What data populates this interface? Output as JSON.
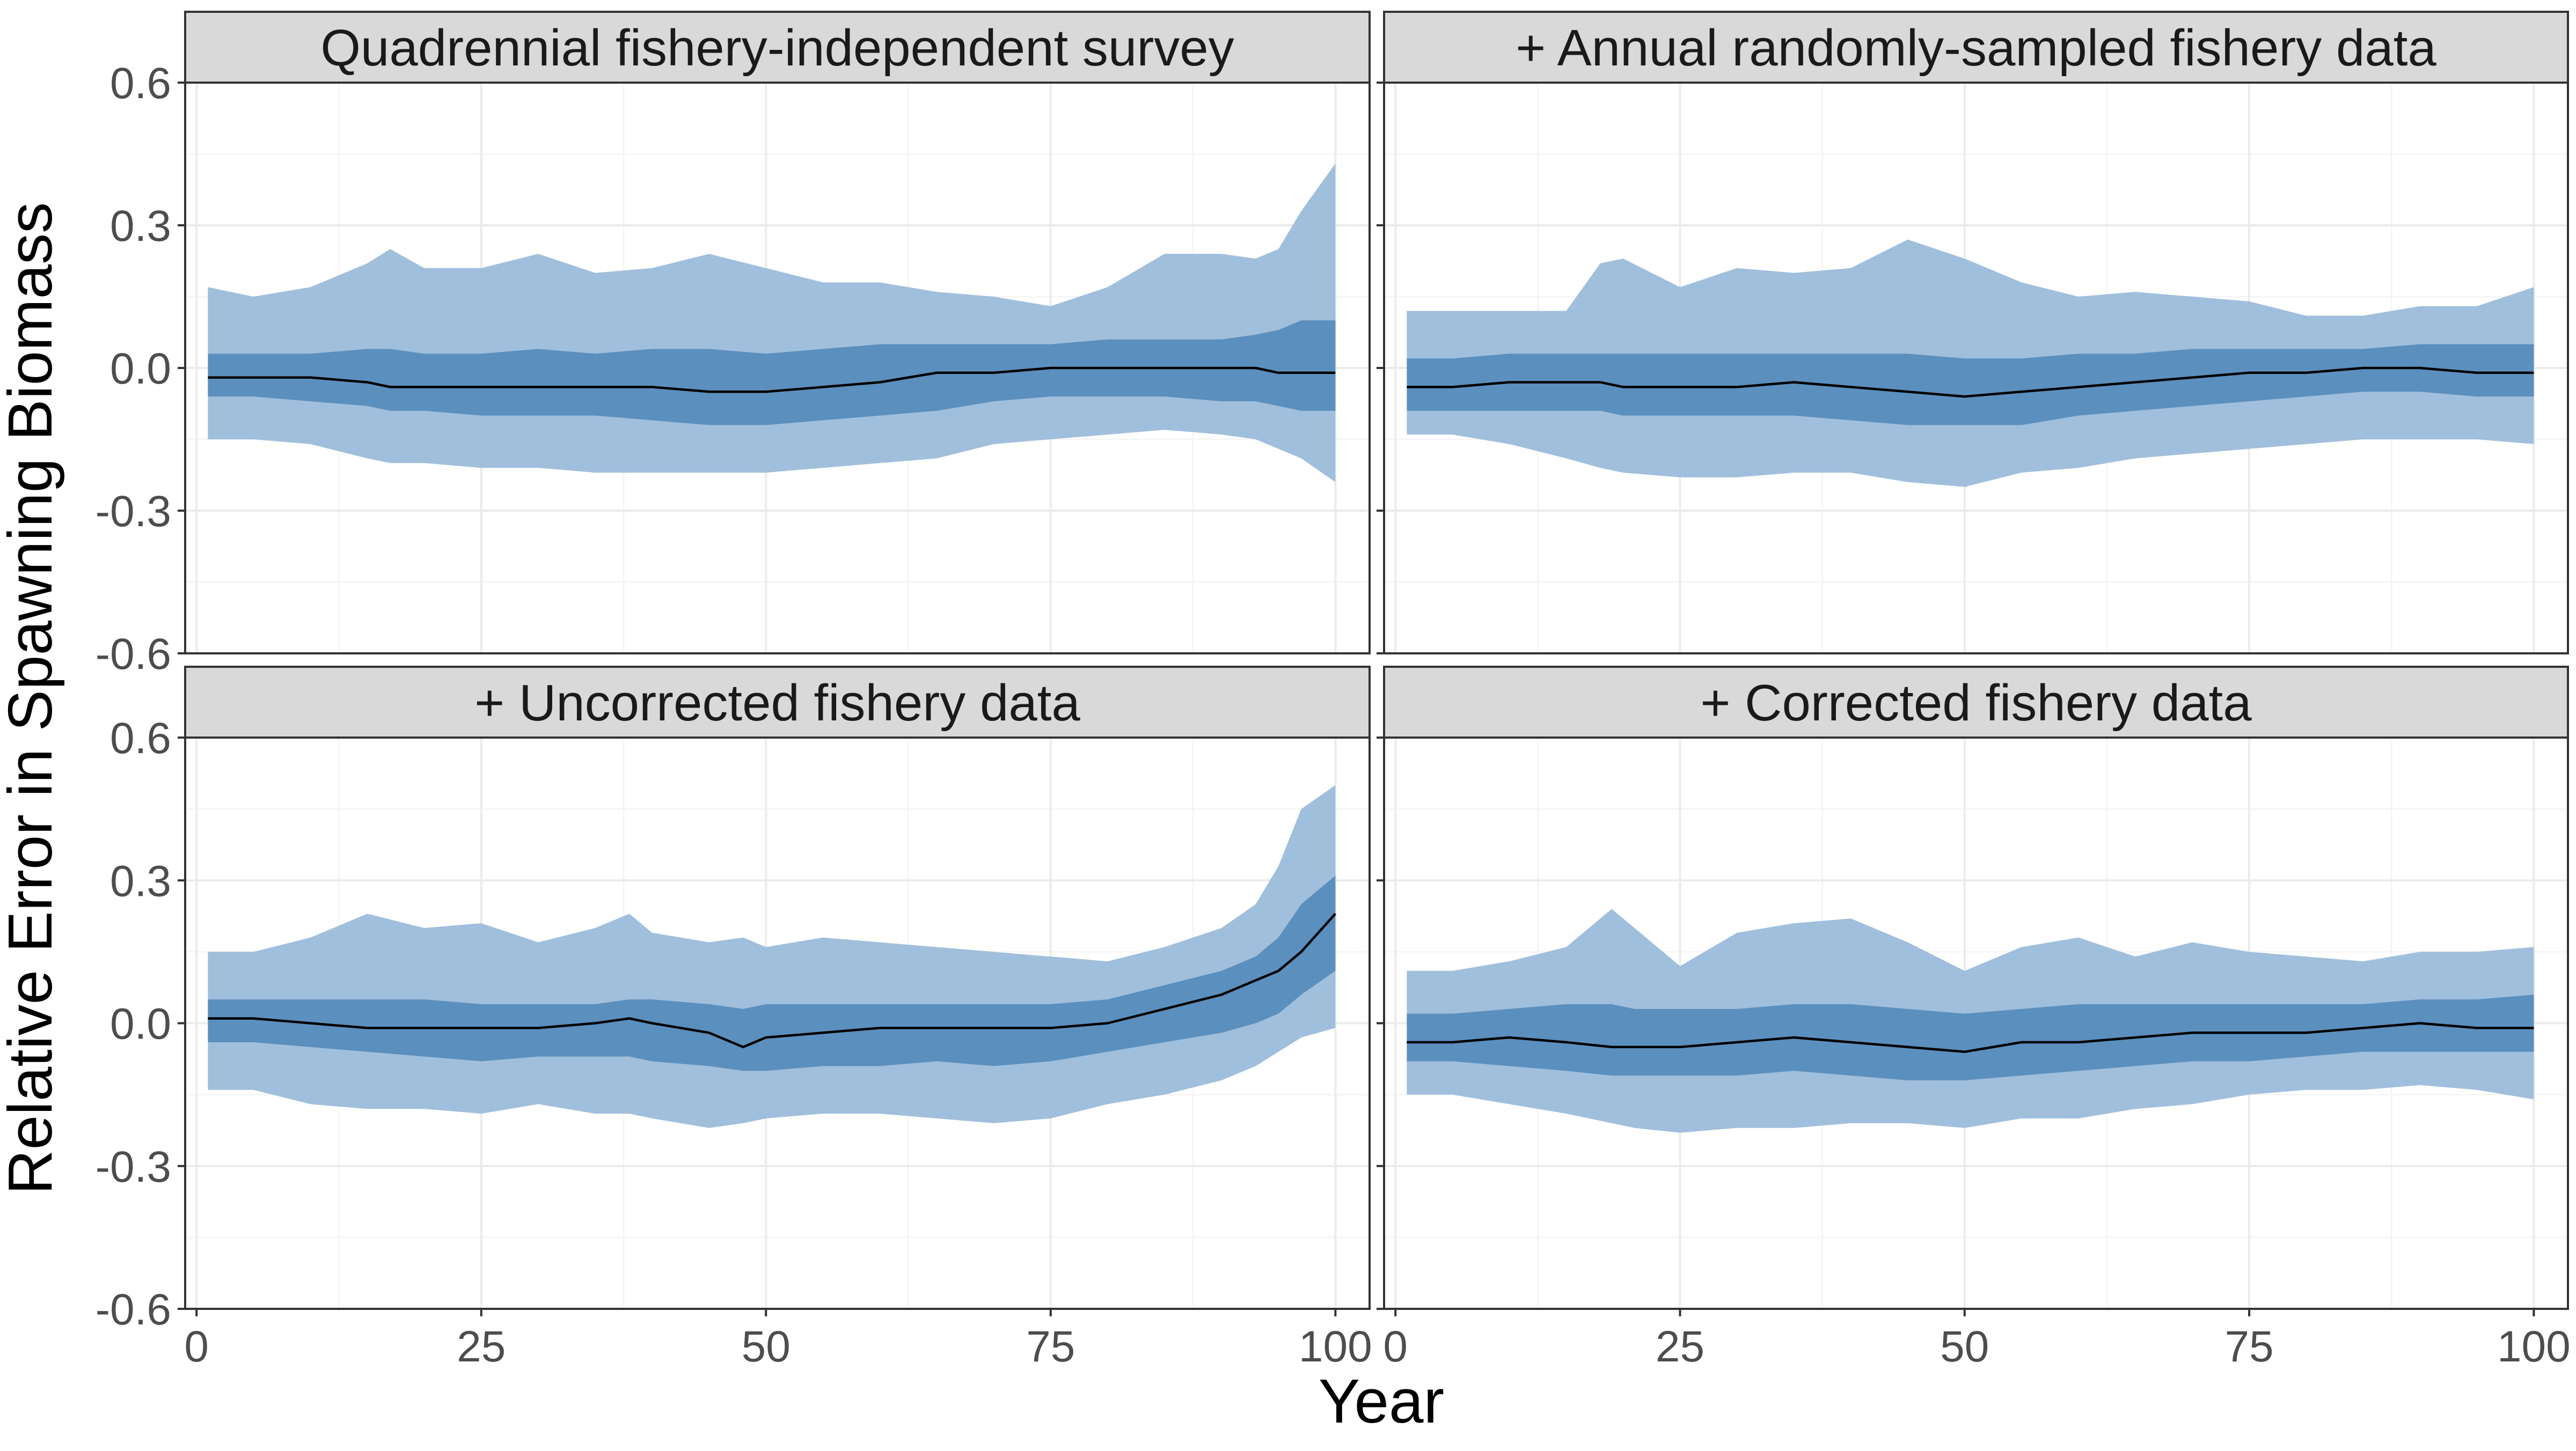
{
  "figure": {
    "xlabel": "Year",
    "ylabel": "Relative Error in Spawning Biomass"
  },
  "colors": {
    "outer_band": "#a0bfdc",
    "inner_band": "#5b8fbd",
    "median_line": "#000000",
    "strip_fill": "#d9d9d9",
    "grid_major": "#ebebeb",
    "grid_minor": "#f5f5f5"
  },
  "chart_data": [
    {
      "type": "area",
      "title": "Quadrennial fishery-independent survey",
      "xlim": [
        -1,
        103
      ],
      "ylim": [
        -0.6,
        0.6
      ],
      "x_ticks": [
        0,
        25,
        50,
        75,
        100
      ],
      "y_ticks": [
        0.6,
        0.3,
        0.0,
        -0.3,
        -0.6
      ],
      "x_tick_labels": [
        "0",
        "25",
        "50",
        "75",
        "100"
      ],
      "y_tick_labels": [
        "0.6",
        "0.3",
        "0.0",
        "-0.3",
        "-0.6"
      ],
      "x": [
        1,
        5,
        10,
        15,
        17,
        20,
        25,
        30,
        35,
        40,
        45,
        50,
        55,
        60,
        65,
        70,
        75,
        80,
        85,
        90,
        93,
        95,
        97,
        100
      ],
      "series": [
        {
          "name": "outer_upper",
          "values": [
            0.17,
            0.15,
            0.17,
            0.22,
            0.25,
            0.21,
            0.21,
            0.24,
            0.2,
            0.21,
            0.24,
            0.21,
            0.18,
            0.18,
            0.16,
            0.15,
            0.13,
            0.17,
            0.24,
            0.24,
            0.23,
            0.25,
            0.33,
            0.43
          ]
        },
        {
          "name": "inner_upper",
          "values": [
            0.03,
            0.03,
            0.03,
            0.04,
            0.04,
            0.03,
            0.03,
            0.04,
            0.03,
            0.04,
            0.04,
            0.03,
            0.04,
            0.05,
            0.05,
            0.05,
            0.05,
            0.06,
            0.06,
            0.06,
            0.07,
            0.08,
            0.1,
            0.1
          ]
        },
        {
          "name": "median",
          "values": [
            -0.02,
            -0.02,
            -0.02,
            -0.03,
            -0.04,
            -0.04,
            -0.04,
            -0.04,
            -0.04,
            -0.04,
            -0.05,
            -0.05,
            -0.04,
            -0.03,
            -0.01,
            -0.01,
            0.0,
            0.0,
            0.0,
            0.0,
            0.0,
            -0.01,
            -0.01,
            -0.01
          ]
        },
        {
          "name": "inner_lower",
          "values": [
            -0.06,
            -0.06,
            -0.07,
            -0.08,
            -0.09,
            -0.09,
            -0.1,
            -0.1,
            -0.1,
            -0.11,
            -0.12,
            -0.12,
            -0.11,
            -0.1,
            -0.09,
            -0.07,
            -0.06,
            -0.06,
            -0.06,
            -0.07,
            -0.07,
            -0.08,
            -0.09,
            -0.09
          ]
        },
        {
          "name": "outer_lower",
          "values": [
            -0.15,
            -0.15,
            -0.16,
            -0.19,
            -0.2,
            -0.2,
            -0.21,
            -0.21,
            -0.22,
            -0.22,
            -0.22,
            -0.22,
            -0.21,
            -0.2,
            -0.19,
            -0.16,
            -0.15,
            -0.14,
            -0.13,
            -0.14,
            -0.15,
            -0.17,
            -0.19,
            -0.24
          ]
        }
      ]
    },
    {
      "type": "area",
      "title": "+ Annual randomly-sampled fishery data",
      "xlim": [
        -1,
        103
      ],
      "ylim": [
        -0.6,
        0.6
      ],
      "x_ticks": [
        0,
        25,
        50,
        75,
        100
      ],
      "y_ticks": [
        0.6,
        0.3,
        0.0,
        -0.3,
        -0.6
      ],
      "x_tick_labels": [
        "0",
        "25",
        "50",
        "75",
        "100"
      ],
      "y_tick_labels": [
        "0.6",
        "0.3",
        "0.0",
        "-0.3",
        "-0.6"
      ],
      "x": [
        1,
        5,
        10,
        15,
        18,
        20,
        25,
        30,
        35,
        40,
        45,
        50,
        55,
        60,
        65,
        70,
        75,
        80,
        85,
        90,
        95,
        100
      ],
      "series": [
        {
          "name": "outer_upper",
          "values": [
            0.12,
            0.12,
            0.12,
            0.12,
            0.22,
            0.23,
            0.17,
            0.21,
            0.2,
            0.21,
            0.27,
            0.23,
            0.18,
            0.15,
            0.16,
            0.15,
            0.14,
            0.11,
            0.11,
            0.13,
            0.13,
            0.17
          ]
        },
        {
          "name": "inner_upper",
          "values": [
            0.02,
            0.02,
            0.03,
            0.03,
            0.03,
            0.03,
            0.03,
            0.03,
            0.03,
            0.03,
            0.03,
            0.02,
            0.02,
            0.03,
            0.03,
            0.04,
            0.04,
            0.04,
            0.04,
            0.05,
            0.05,
            0.05
          ]
        },
        {
          "name": "median",
          "values": [
            -0.04,
            -0.04,
            -0.03,
            -0.03,
            -0.03,
            -0.04,
            -0.04,
            -0.04,
            -0.03,
            -0.04,
            -0.05,
            -0.06,
            -0.05,
            -0.04,
            -0.03,
            -0.02,
            -0.01,
            -0.01,
            0.0,
            0.0,
            -0.01,
            -0.01
          ]
        },
        {
          "name": "inner_lower",
          "values": [
            -0.09,
            -0.09,
            -0.09,
            -0.09,
            -0.09,
            -0.1,
            -0.1,
            -0.1,
            -0.1,
            -0.11,
            -0.12,
            -0.12,
            -0.12,
            -0.1,
            -0.09,
            -0.08,
            -0.07,
            -0.06,
            -0.05,
            -0.05,
            -0.06,
            -0.06
          ]
        },
        {
          "name": "outer_lower",
          "values": [
            -0.14,
            -0.14,
            -0.16,
            -0.19,
            -0.21,
            -0.22,
            -0.23,
            -0.23,
            -0.22,
            -0.22,
            -0.24,
            -0.25,
            -0.22,
            -0.21,
            -0.19,
            -0.18,
            -0.17,
            -0.16,
            -0.15,
            -0.15,
            -0.15,
            -0.16
          ]
        }
      ]
    },
    {
      "type": "area",
      "title": "+ Uncorrected fishery data",
      "xlim": [
        -1,
        103
      ],
      "ylim": [
        -0.6,
        0.6
      ],
      "x_ticks": [
        0,
        25,
        50,
        75,
        100
      ],
      "y_ticks": [
        0.6,
        0.3,
        0.0,
        -0.3,
        -0.6
      ],
      "x_tick_labels": [
        "0",
        "25",
        "50",
        "75",
        "100"
      ],
      "y_tick_labels": [
        "0.6",
        "0.3",
        "0.0",
        "-0.3",
        "-0.6"
      ],
      "x": [
        1,
        5,
        10,
        15,
        20,
        25,
        30,
        35,
        38,
        40,
        45,
        48,
        50,
        55,
        60,
        65,
        70,
        75,
        80,
        85,
        90,
        93,
        95,
        97,
        100
      ],
      "series": [
        {
          "name": "outer_upper",
          "values": [
            0.15,
            0.15,
            0.18,
            0.23,
            0.2,
            0.21,
            0.17,
            0.2,
            0.23,
            0.19,
            0.17,
            0.18,
            0.16,
            0.18,
            0.17,
            0.16,
            0.15,
            0.14,
            0.13,
            0.16,
            0.2,
            0.25,
            0.33,
            0.45,
            0.5
          ]
        },
        {
          "name": "inner_upper",
          "values": [
            0.05,
            0.05,
            0.05,
            0.05,
            0.05,
            0.04,
            0.04,
            0.04,
            0.05,
            0.05,
            0.04,
            0.03,
            0.04,
            0.04,
            0.04,
            0.04,
            0.04,
            0.04,
            0.05,
            0.08,
            0.11,
            0.14,
            0.18,
            0.25,
            0.31
          ]
        },
        {
          "name": "median",
          "values": [
            0.01,
            0.01,
            0.0,
            -0.01,
            -0.01,
            -0.01,
            -0.01,
            0.0,
            0.01,
            0.0,
            -0.02,
            -0.05,
            -0.03,
            -0.02,
            -0.01,
            -0.01,
            -0.01,
            -0.01,
            0.0,
            0.03,
            0.06,
            0.09,
            0.11,
            0.15,
            0.23
          ]
        },
        {
          "name": "inner_lower",
          "values": [
            -0.04,
            -0.04,
            -0.05,
            -0.06,
            -0.07,
            -0.08,
            -0.07,
            -0.07,
            -0.07,
            -0.08,
            -0.09,
            -0.1,
            -0.1,
            -0.09,
            -0.09,
            -0.08,
            -0.09,
            -0.08,
            -0.06,
            -0.04,
            -0.02,
            0.0,
            0.02,
            0.06,
            0.11
          ]
        },
        {
          "name": "outer_lower",
          "values": [
            -0.14,
            -0.14,
            -0.17,
            -0.18,
            -0.18,
            -0.19,
            -0.17,
            -0.19,
            -0.19,
            -0.2,
            -0.22,
            -0.21,
            -0.2,
            -0.19,
            -0.19,
            -0.2,
            -0.21,
            -0.2,
            -0.17,
            -0.15,
            -0.12,
            -0.09,
            -0.06,
            -0.03,
            -0.01
          ]
        }
      ]
    },
    {
      "type": "area",
      "title": "+ Corrected fishery data",
      "xlim": [
        -1,
        103
      ],
      "ylim": [
        -0.6,
        0.6
      ],
      "x_ticks": [
        0,
        25,
        50,
        75,
        100
      ],
      "y_ticks": [
        0.6,
        0.3,
        0.0,
        -0.3,
        -0.6
      ],
      "x_tick_labels": [
        "0",
        "25",
        "50",
        "75",
        "100"
      ],
      "y_tick_labels": [
        "0.6",
        "0.3",
        "0.0",
        "-0.3",
        "-0.6"
      ],
      "x": [
        1,
        5,
        10,
        15,
        19,
        21,
        25,
        30,
        35,
        40,
        45,
        50,
        55,
        60,
        65,
        70,
        75,
        80,
        85,
        90,
        95,
        100
      ],
      "series": [
        {
          "name": "outer_upper",
          "values": [
            0.11,
            0.11,
            0.13,
            0.16,
            0.24,
            0.2,
            0.12,
            0.19,
            0.21,
            0.22,
            0.17,
            0.11,
            0.16,
            0.18,
            0.14,
            0.17,
            0.15,
            0.14,
            0.13,
            0.15,
            0.15,
            0.16
          ]
        },
        {
          "name": "inner_upper",
          "values": [
            0.02,
            0.02,
            0.03,
            0.04,
            0.04,
            0.03,
            0.03,
            0.03,
            0.04,
            0.04,
            0.03,
            0.02,
            0.03,
            0.04,
            0.04,
            0.04,
            0.04,
            0.04,
            0.04,
            0.05,
            0.05,
            0.06
          ]
        },
        {
          "name": "median",
          "values": [
            -0.04,
            -0.04,
            -0.03,
            -0.04,
            -0.05,
            -0.05,
            -0.05,
            -0.04,
            -0.03,
            -0.04,
            -0.05,
            -0.06,
            -0.04,
            -0.04,
            -0.03,
            -0.02,
            -0.02,
            -0.02,
            -0.01,
            0.0,
            -0.01,
            -0.01
          ]
        },
        {
          "name": "inner_lower",
          "values": [
            -0.08,
            -0.08,
            -0.09,
            -0.1,
            -0.11,
            -0.11,
            -0.11,
            -0.11,
            -0.1,
            -0.11,
            -0.12,
            -0.12,
            -0.11,
            -0.1,
            -0.09,
            -0.08,
            -0.08,
            -0.07,
            -0.06,
            -0.06,
            -0.06,
            -0.06
          ]
        },
        {
          "name": "outer_lower",
          "values": [
            -0.15,
            -0.15,
            -0.17,
            -0.19,
            -0.21,
            -0.22,
            -0.23,
            -0.22,
            -0.22,
            -0.21,
            -0.21,
            -0.22,
            -0.2,
            -0.2,
            -0.18,
            -0.17,
            -0.15,
            -0.14,
            -0.14,
            -0.13,
            -0.14,
            -0.16
          ]
        }
      ]
    }
  ]
}
